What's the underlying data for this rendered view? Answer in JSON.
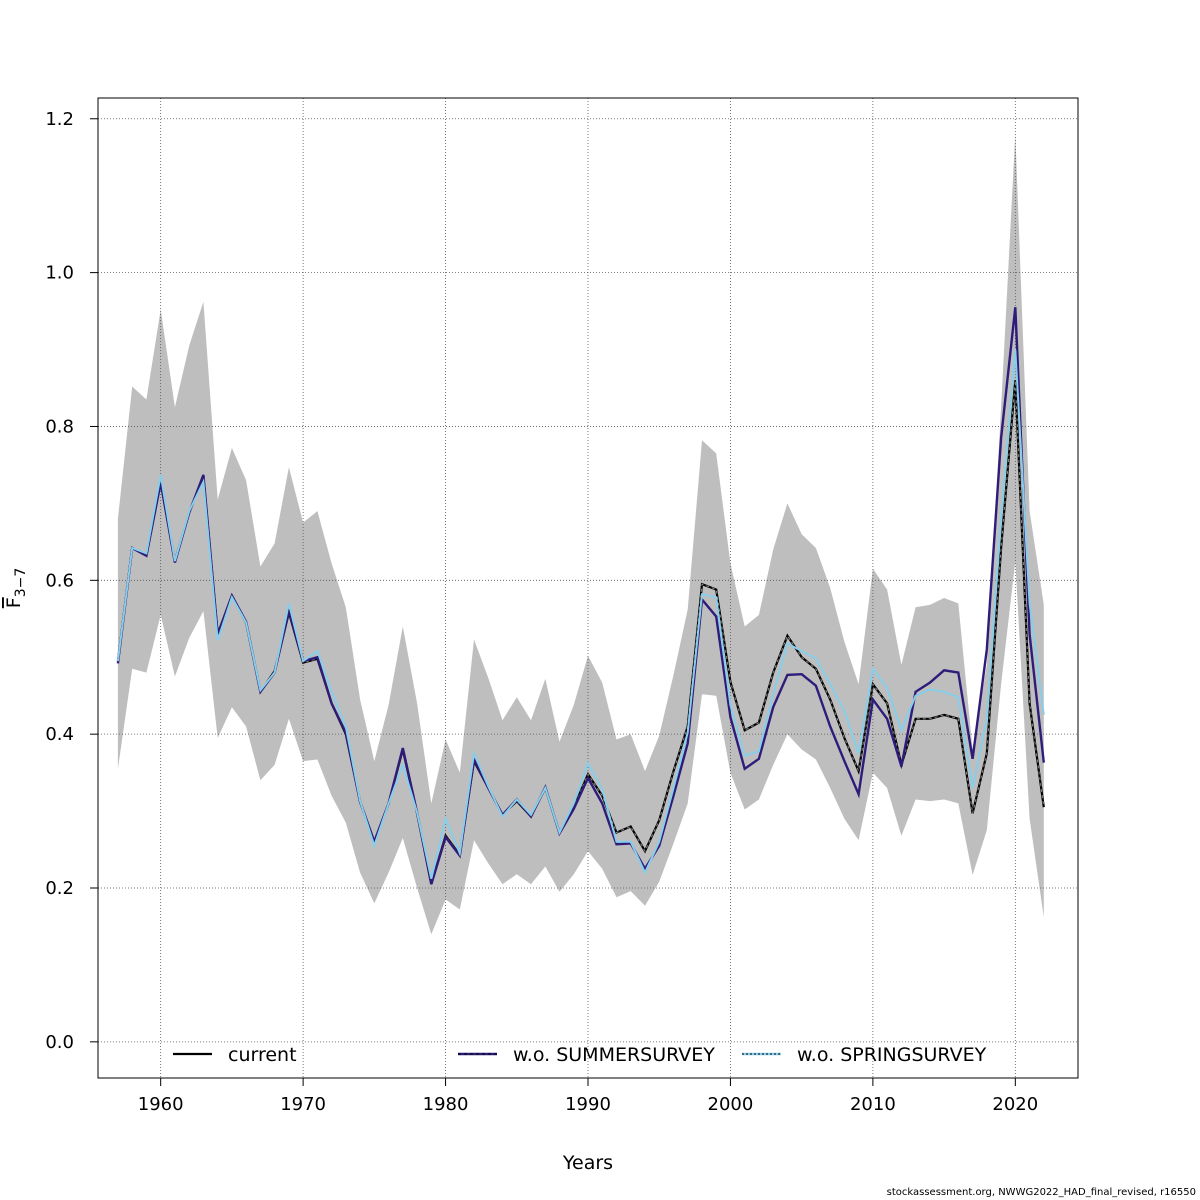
{
  "chart_data": {
    "type": "line",
    "title": "",
    "xlabel": "Years",
    "ylabel": "F̅ 3−7",
    "ylabel_main": "F",
    "ylabel_sub": "3−7",
    "xlim": [
      1955.6,
      2024.4
    ],
    "ylim": [
      -0.047,
      1.227
    ],
    "x_ticks": [
      1960,
      1970,
      1980,
      1990,
      2000,
      2010,
      2020
    ],
    "y_ticks": [
      0.0,
      0.2,
      0.4,
      0.6,
      0.8,
      1.0,
      1.2
    ],
    "y_tick_labels": [
      "0.0",
      "0.2",
      "0.4",
      "0.6",
      "0.8",
      "1.0",
      "1.2"
    ],
    "grid": true,
    "legend_position": "bottom",
    "band_color": "#bebebe",
    "x": [
      1957,
      1958,
      1959,
      1960,
      1961,
      1962,
      1963,
      1964,
      1965,
      1966,
      1967,
      1968,
      1969,
      1970,
      1971,
      1972,
      1973,
      1974,
      1975,
      1976,
      1977,
      1978,
      1979,
      1980,
      1981,
      1982,
      1983,
      1984,
      1985,
      1986,
      1987,
      1988,
      1989,
      1990,
      1991,
      1992,
      1993,
      1994,
      1995,
      1996,
      1997,
      1998,
      1999,
      2000,
      2001,
      2002,
      2003,
      2004,
      2005,
      2006,
      2007,
      2008,
      2009,
      2010,
      2011,
      2012,
      2013,
      2014,
      2015,
      2016,
      2017,
      2018,
      2019,
      2020,
      2021,
      2022
    ],
    "band_lower": [
      0.355,
      0.485,
      0.48,
      0.555,
      0.475,
      0.525,
      0.56,
      0.395,
      0.435,
      0.41,
      0.34,
      0.36,
      0.42,
      0.365,
      0.367,
      0.32,
      0.285,
      0.22,
      0.18,
      0.22,
      0.265,
      0.2,
      0.14,
      0.185,
      0.172,
      0.262,
      0.232,
      0.205,
      0.218,
      0.205,
      0.228,
      0.195,
      0.218,
      0.248,
      0.225,
      0.188,
      0.196,
      0.177,
      0.208,
      0.258,
      0.31,
      0.452,
      0.45,
      0.35,
      0.302,
      0.315,
      0.36,
      0.4,
      0.38,
      0.367,
      0.33,
      0.29,
      0.262,
      0.35,
      0.33,
      0.268,
      0.315,
      0.313,
      0.315,
      0.31,
      0.217,
      0.275,
      0.465,
      0.625,
      0.29,
      0.162
    ],
    "band_upper": [
      0.68,
      0.852,
      0.835,
      0.952,
      0.825,
      0.905,
      0.962,
      0.705,
      0.772,
      0.73,
      0.618,
      0.648,
      0.747,
      0.675,
      0.69,
      0.622,
      0.565,
      0.445,
      0.365,
      0.438,
      0.54,
      0.44,
      0.31,
      0.393,
      0.35,
      0.523,
      0.473,
      0.418,
      0.448,
      0.418,
      0.472,
      0.39,
      0.438,
      0.502,
      0.467,
      0.393,
      0.4,
      0.352,
      0.398,
      0.477,
      0.562,
      0.782,
      0.765,
      0.622,
      0.54,
      0.555,
      0.64,
      0.7,
      0.66,
      0.642,
      0.59,
      0.52,
      0.465,
      0.615,
      0.588,
      0.49,
      0.565,
      0.568,
      0.577,
      0.57,
      0.38,
      0.49,
      0.825,
      1.18,
      0.69,
      0.568
    ],
    "series": [
      {
        "name": "current",
        "color": "#000000",
        "values": [
          0.495,
          0.642,
          0.632,
          0.728,
          0.625,
          0.688,
          0.735,
          0.53,
          0.58,
          0.545,
          0.455,
          0.482,
          0.558,
          0.493,
          0.498,
          0.44,
          0.4,
          0.312,
          0.26,
          0.31,
          0.38,
          0.297,
          0.205,
          0.268,
          0.243,
          0.365,
          0.33,
          0.295,
          0.313,
          0.293,
          0.33,
          0.272,
          0.305,
          0.348,
          0.32,
          0.272,
          0.28,
          0.248,
          0.288,
          0.352,
          0.41,
          0.595,
          0.588,
          0.468,
          0.405,
          0.415,
          0.48,
          0.528,
          0.5,
          0.485,
          0.445,
          0.395,
          0.352,
          0.465,
          0.44,
          0.36,
          0.42,
          0.42,
          0.425,
          0.42,
          0.297,
          0.375,
          0.642,
          0.86,
          0.44,
          0.305
        ]
      },
      {
        "name": "w.o. SUMMERSURVEY",
        "color": "#2f1b7a",
        "values": [
          0.492,
          0.642,
          0.632,
          0.727,
          0.623,
          0.688,
          0.737,
          0.53,
          0.58,
          0.546,
          0.455,
          0.48,
          0.56,
          0.495,
          0.5,
          0.44,
          0.402,
          0.312,
          0.26,
          0.31,
          0.382,
          0.298,
          0.205,
          0.266,
          0.242,
          0.367,
          0.33,
          0.295,
          0.315,
          0.293,
          0.331,
          0.271,
          0.303,
          0.343,
          0.31,
          0.257,
          0.258,
          0.225,
          0.255,
          0.32,
          0.388,
          0.575,
          0.553,
          0.422,
          0.355,
          0.368,
          0.435,
          0.477,
          0.478,
          0.463,
          0.41,
          0.365,
          0.322,
          0.445,
          0.42,
          0.358,
          0.455,
          0.467,
          0.483,
          0.48,
          0.368,
          0.51,
          0.785,
          0.955,
          0.53,
          0.363
        ]
      },
      {
        "name": "w.o. SPRINGSURVEY",
        "color": "#87ceeb",
        "values": [
          0.495,
          0.642,
          0.635,
          0.737,
          0.625,
          0.69,
          0.728,
          0.522,
          0.578,
          0.545,
          0.457,
          0.48,
          0.57,
          0.495,
          0.508,
          0.455,
          0.41,
          0.313,
          0.255,
          0.31,
          0.36,
          0.298,
          0.212,
          0.29,
          0.245,
          0.375,
          0.332,
          0.293,
          0.315,
          0.295,
          0.33,
          0.272,
          0.31,
          0.362,
          0.328,
          0.26,
          0.26,
          0.22,
          0.26,
          0.33,
          0.402,
          0.582,
          0.578,
          0.438,
          0.372,
          0.378,
          0.452,
          0.518,
          0.508,
          0.498,
          0.465,
          0.43,
          0.375,
          0.485,
          0.46,
          0.405,
          0.45,
          0.458,
          0.455,
          0.448,
          0.33,
          0.42,
          0.68,
          0.9,
          0.57,
          0.425
        ]
      }
    ]
  },
  "footnote": "stockassessment.org, NWWG2022_HAD_final_revised, r16550"
}
